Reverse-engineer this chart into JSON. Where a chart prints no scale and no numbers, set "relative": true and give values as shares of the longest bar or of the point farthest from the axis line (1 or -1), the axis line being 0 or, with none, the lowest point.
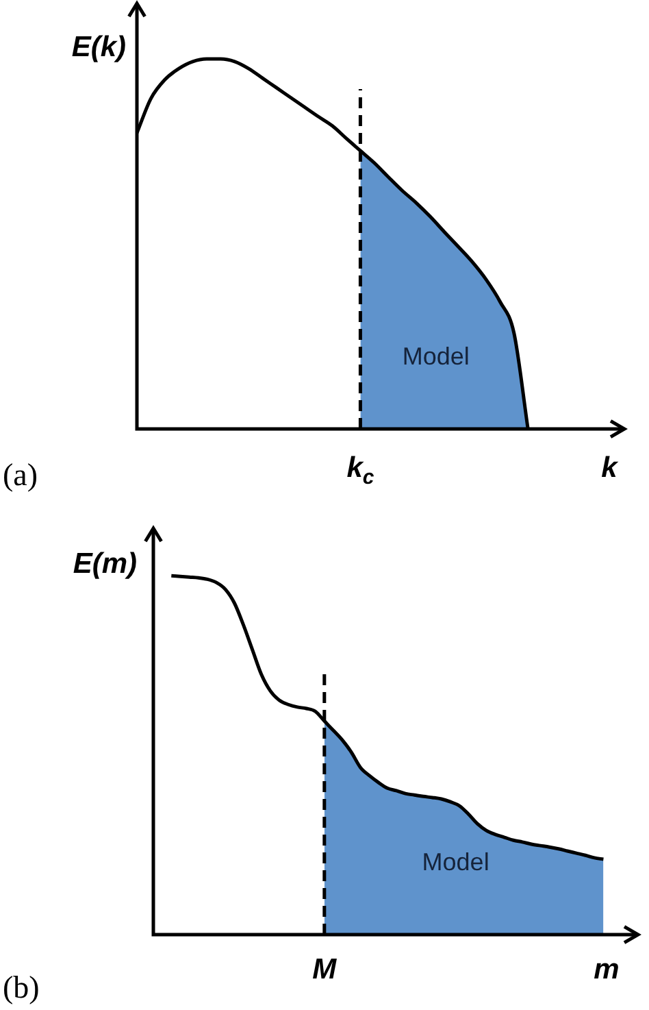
{
  "chart_data": [
    {
      "type": "line",
      "title": "(a)",
      "ylabel": "E(k)",
      "xlabel": "k",
      "relative": true,
      "categories": [
        null,
        null,
        null,
        null,
        null,
        null,
        null,
        null,
        null,
        null,
        null,
        null,
        null,
        null,
        null,
        null,
        null,
        null,
        null,
        null,
        null,
        null,
        null,
        null,
        null,
        null,
        null,
        null,
        null,
        null,
        null,
        null,
        null,
        null,
        null,
        null
      ],
      "series": [
        {
          "type": "line",
          "color": "#000000",
          "values": [
            0.8,
            0.893,
            0.944,
            0.974,
            0.993,
            1.0,
            1.0,
            0.993,
            0.974,
            0.948,
            0.922,
            0.896,
            0.87,
            0.844,
            0.819,
            0.785,
            0.752,
            0.719,
            0.681,
            0.644,
            0.611,
            0.574,
            0.533,
            0.493,
            0.452,
            0.404,
            0.344,
            0.259,
            0,
            null,
            null,
            null,
            null,
            null,
            null,
            null
          ]
        },
        {
          "type": "area",
          "name": "Model",
          "color": "#5f93cc",
          "values": [
            null,
            null,
            null,
            null,
            null,
            null,
            null,
            null,
            null,
            null,
            null,
            null,
            null,
            null,
            null,
            null,
            0.752,
            0.719,
            0.681,
            0.644,
            0.611,
            0.574,
            0.533,
            0.493,
            0.452,
            0.404,
            0.344,
            0.259,
            0,
            null,
            null,
            null,
            null,
            null,
            null,
            null
          ]
        }
      ],
      "ref_lines": [
        {
          "axis": "x",
          "value": "k$_{c}$",
          "color": "#000000",
          "line_style": "dashed"
        }
      ]
    },
    {
      "type": "line",
      "title": "(b)",
      "ylabel": "E(m)",
      "xlabel": "m",
      "relative": true,
      "categories": [
        null,
        null,
        null,
        null,
        null,
        null,
        null,
        null,
        null,
        null,
        null,
        null,
        null,
        null,
        null,
        null,
        null,
        null,
        null,
        null,
        null,
        null,
        null,
        null,
        null,
        null,
        null,
        null,
        null,
        null,
        null,
        null,
        null,
        null,
        null,
        null,
        null,
        null,
        null,
        null,
        null,
        null,
        null,
        null,
        null,
        null,
        null,
        null,
        null,
        null,
        null,
        null,
        null,
        null,
        null
      ],
      "series": [
        {
          "type": "line",
          "color": "#000000",
          "values": [
            null,
            null,
            1.0,
            0.998,
            0.996,
            0.994,
            0.99,
            0.981,
            0.962,
            0.924,
            0.863,
            0.794,
            0.725,
            0.679,
            0.653,
            0.641,
            0.634,
            0.63,
            0.622,
            0.595,
            0.569,
            0.542,
            0.508,
            0.466,
            0.443,
            0.424,
            0.408,
            0.401,
            0.393,
            0.389,
            0.385,
            0.382,
            0.378,
            0.37,
            0.359,
            0.336,
            0.309,
            0.29,
            0.279,
            0.271,
            0.263,
            0.258,
            0.252,
            0.248,
            0.244,
            0.239,
            0.233,
            0.227,
            0.221,
            0.214,
            0.21,
            null,
            null,
            null,
            null
          ]
        },
        {
          "type": "area",
          "name": "Model",
          "color": "#5f93cc",
          "values": [
            null,
            null,
            null,
            null,
            null,
            null,
            null,
            null,
            null,
            null,
            null,
            null,
            null,
            null,
            null,
            null,
            null,
            null,
            null,
            0.595,
            0.569,
            0.542,
            0.508,
            0.466,
            0.443,
            0.424,
            0.408,
            0.401,
            0.393,
            0.389,
            0.385,
            0.382,
            0.378,
            0.37,
            0.359,
            0.336,
            0.309,
            0.29,
            0.279,
            0.271,
            0.263,
            0.258,
            0.252,
            0.248,
            0.244,
            0.239,
            0.233,
            0.227,
            0.221,
            0.214,
            0.21,
            null,
            null,
            null,
            null
          ]
        }
      ],
      "ref_lines": [
        {
          "axis": "x",
          "value": "M",
          "color": "#000000",
          "line_style": "dashed"
        }
      ]
    }
  ]
}
